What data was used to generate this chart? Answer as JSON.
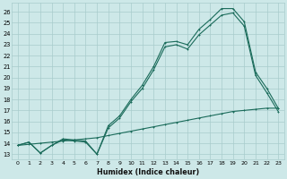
{
  "xlabel": "Humidex (Indice chaleur)",
  "bg_color": "#cde8e8",
  "grid_color": "#a8cccc",
  "line_color": "#1a6b5a",
  "xlim": [
    -0.5,
    23.5
  ],
  "ylim": [
    12.5,
    26.8
  ],
  "xticks": [
    0,
    1,
    2,
    3,
    4,
    5,
    6,
    7,
    8,
    9,
    10,
    11,
    12,
    13,
    14,
    15,
    16,
    17,
    18,
    19,
    20,
    21,
    22,
    23
  ],
  "yticks": [
    13,
    14,
    15,
    16,
    17,
    18,
    19,
    20,
    21,
    22,
    23,
    24,
    25,
    26
  ],
  "line1_x": [
    0,
    1,
    2,
    3,
    4,
    5,
    6,
    7,
    8,
    9,
    10,
    11,
    12,
    13,
    14,
    15,
    16,
    17,
    18,
    19,
    20,
    21,
    22,
    23
  ],
  "line1_y": [
    13.8,
    14.1,
    13.1,
    13.8,
    14.4,
    14.3,
    14.2,
    13.0,
    15.6,
    16.5,
    18.0,
    19.3,
    21.0,
    23.2,
    23.3,
    23.0,
    24.4,
    25.3,
    26.3,
    26.3,
    25.1,
    20.5,
    19.0,
    17.2
  ],
  "line2_x": [
    0,
    1,
    2,
    3,
    4,
    5,
    6,
    7,
    8,
    9,
    10,
    11,
    12,
    13,
    14,
    15,
    16,
    17,
    18,
    19,
    20,
    21,
    22,
    23
  ],
  "line2_y": [
    13.8,
    14.1,
    13.1,
    13.8,
    14.3,
    14.2,
    14.1,
    13.0,
    15.4,
    16.3,
    17.8,
    19.0,
    20.7,
    22.8,
    23.0,
    22.6,
    23.9,
    24.8,
    25.7,
    25.9,
    24.7,
    20.2,
    18.6,
    16.9
  ],
  "line3_x": [
    0,
    1,
    2,
    3,
    4,
    5,
    6,
    7,
    8,
    9,
    10,
    11,
    12,
    13,
    14,
    15,
    16,
    17,
    18,
    19,
    20,
    21,
    22,
    23
  ],
  "line3_y": [
    13.8,
    13.9,
    14.0,
    14.1,
    14.2,
    14.3,
    14.4,
    14.5,
    14.7,
    14.9,
    15.1,
    15.3,
    15.5,
    15.7,
    15.9,
    16.1,
    16.3,
    16.5,
    16.7,
    16.9,
    17.0,
    17.1,
    17.2,
    17.2
  ]
}
